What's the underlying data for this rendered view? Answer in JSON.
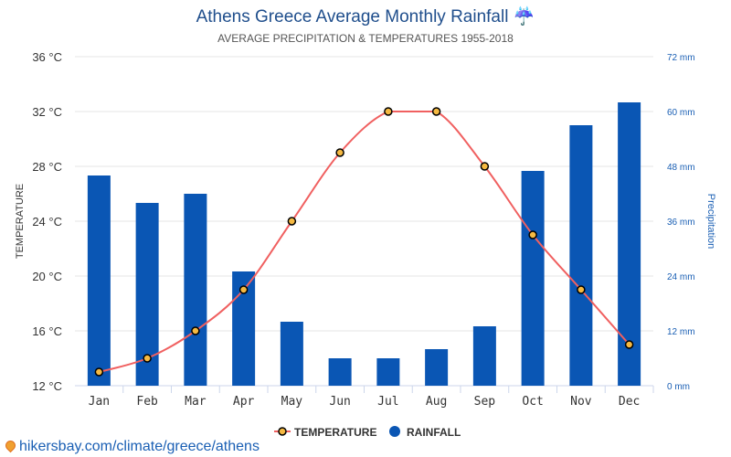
{
  "title": "Athens Greece Average Monthly Rainfall",
  "title_icon": "umbrella-rain-icon",
  "subtitle": "AVERAGE PRECIPITATION & TEMPERATURES 1955-2018",
  "footer": {
    "link": "hikersbay.com/climate/greece/athens",
    "icon": "map-pin-icon"
  },
  "chart_data": {
    "type": "bar+line",
    "categories": [
      "Jan",
      "Feb",
      "Mar",
      "Apr",
      "May",
      "Jun",
      "Jul",
      "Aug",
      "Sep",
      "Oct",
      "Nov",
      "Dec"
    ],
    "series": [
      {
        "name": "TEMPERATURE",
        "type": "line",
        "axis": "left",
        "unit": "°C",
        "color": "#f06060",
        "marker_color": "#f5b942",
        "values": [
          13,
          14,
          16,
          19,
          24,
          29,
          32,
          32,
          28,
          23,
          19,
          15
        ]
      },
      {
        "name": "RAINFALL",
        "type": "bar",
        "axis": "right",
        "unit": "mm",
        "color": "#0a56b4",
        "values": [
          46,
          40,
          42,
          25,
          14,
          6,
          6,
          8,
          13,
          47,
          57,
          62
        ]
      }
    ],
    "ylabel_left": "TEMPERATURE",
    "ylabel_right": "Precipitation",
    "ylim_left": [
      12,
      36
    ],
    "ylim_right": [
      0,
      72
    ],
    "yticks_left": [
      "12 °C",
      "16 °C",
      "20 °C",
      "24 °C",
      "28 °C",
      "32 °C",
      "36 °C"
    ],
    "yticks_right": [
      "0 mm",
      "12 mm",
      "24 mm",
      "36 mm",
      "48 mm",
      "60 mm",
      "72 mm"
    ],
    "grid": true,
    "legend": "bottom"
  }
}
